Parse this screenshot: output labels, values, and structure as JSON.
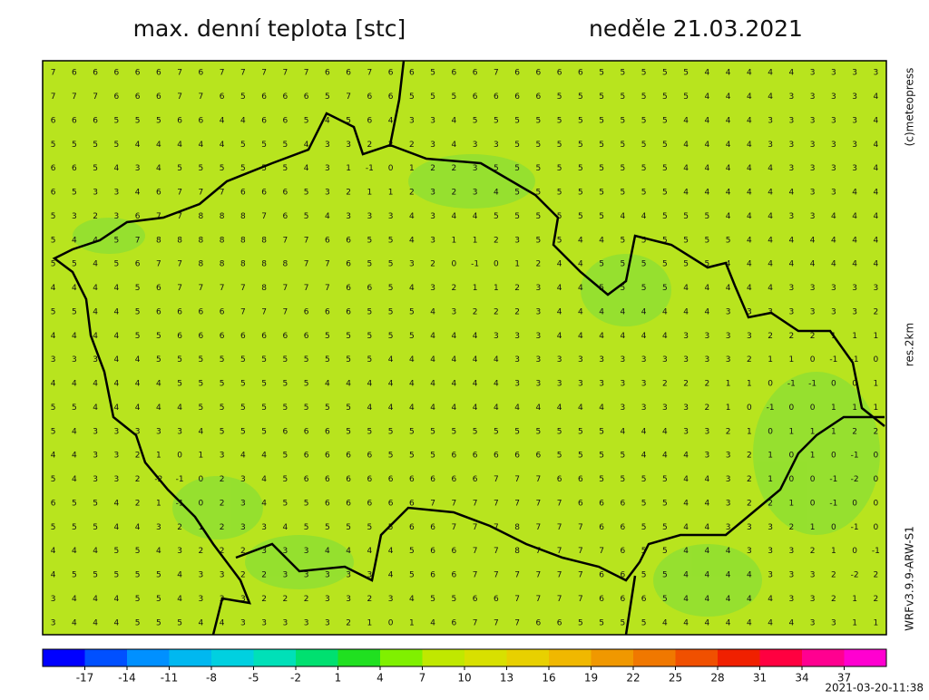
{
  "header": {
    "title": "max. denní teplota [stc]",
    "date": "neděle 21.03.2021"
  },
  "side_labels": {
    "copyright": "(c)meteopress",
    "resolution": "res.2km",
    "model": "WRFv3.9.9-ARW-S1"
  },
  "timestamp": "2021-03-20-11:38",
  "colorbar": {
    "range": [
      -20,
      40
    ],
    "ticks": [
      -17,
      -14,
      -11,
      -8,
      -5,
      -2,
      1,
      4,
      7,
      10,
      13,
      16,
      19,
      22,
      25,
      28,
      31,
      34,
      37
    ],
    "colors": [
      "#0000ff",
      "#0050ff",
      "#0090ff",
      "#00b8f0",
      "#00d0e0",
      "#00e0b8",
      "#00e070",
      "#20e020",
      "#80f000",
      "#c0e800",
      "#d8e000",
      "#e8d000",
      "#f0b800",
      "#f09800",
      "#f07800",
      "#f05000",
      "#f02000",
      "#ff0040",
      "#ff0090",
      "#ff00d0"
    ]
  },
  "grid": [
    [
      7,
      6,
      6,
      6,
      6,
      6,
      7,
      6,
      7,
      7,
      7,
      7,
      7,
      6,
      6,
      7,
      6,
      6,
      5,
      6,
      6,
      7,
      6,
      6,
      6,
      6,
      5,
      5,
      5,
      5,
      5,
      4,
      4,
      4,
      4,
      4,
      3,
      3,
      3,
      3
    ],
    [
      7,
      7,
      7,
      6,
      6,
      6,
      7,
      7,
      6,
      5,
      6,
      6,
      6,
      5,
      7,
      6,
      6,
      5,
      5,
      5,
      6,
      6,
      6,
      6,
      5,
      5,
      5,
      5,
      5,
      5,
      5,
      4,
      4,
      4,
      4,
      3,
      3,
      3,
      3,
      4
    ],
    [
      6,
      6,
      6,
      5,
      5,
      5,
      6,
      6,
      4,
      4,
      6,
      6,
      5,
      4,
      5,
      6,
      4,
      3,
      3,
      4,
      5,
      5,
      5,
      5,
      5,
      5,
      5,
      5,
      5,
      5,
      4,
      4,
      4,
      4,
      3,
      3,
      3,
      3,
      3,
      4
    ],
    [
      5,
      5,
      5,
      5,
      4,
      4,
      4,
      4,
      4,
      5,
      5,
      5,
      4,
      3,
      3,
      2,
      2,
      2,
      3,
      4,
      3,
      3,
      5,
      5,
      5,
      5,
      5,
      5,
      5,
      5,
      4,
      4,
      4,
      4,
      3,
      3,
      3,
      3,
      3,
      4
    ],
    [
      6,
      6,
      5,
      4,
      3,
      4,
      5,
      5,
      5,
      5,
      5,
      5,
      4,
      3,
      1,
      -1,
      0,
      1,
      2,
      2,
      3,
      5,
      5,
      5,
      5,
      5,
      5,
      5,
      5,
      5,
      4,
      4,
      4,
      4,
      4,
      3,
      3,
      3,
      3,
      4
    ],
    [
      6,
      5,
      3,
      3,
      4,
      6,
      7,
      7,
      7,
      6,
      6,
      6,
      5,
      3,
      2,
      1,
      1,
      2,
      3,
      2,
      3,
      4,
      5,
      5,
      5,
      5,
      5,
      5,
      5,
      5,
      4,
      4,
      4,
      4,
      4,
      4,
      3,
      3,
      4,
      4
    ],
    [
      5,
      3,
      2,
      3,
      6,
      7,
      7,
      8,
      8,
      8,
      7,
      6,
      5,
      4,
      3,
      3,
      3,
      4,
      3,
      4,
      4,
      5,
      5,
      5,
      5,
      5,
      5,
      4,
      4,
      5,
      5,
      5,
      4,
      4,
      4,
      3,
      3,
      4,
      4,
      4
    ],
    [
      5,
      4,
      4,
      5,
      7,
      8,
      8,
      8,
      8,
      8,
      8,
      7,
      7,
      6,
      6,
      5,
      5,
      4,
      3,
      1,
      1,
      2,
      3,
      5,
      5,
      4,
      4,
      5,
      5,
      5,
      5,
      5,
      5,
      4,
      4,
      4,
      4,
      4,
      4,
      4
    ],
    [
      5,
      5,
      4,
      5,
      6,
      7,
      7,
      8,
      8,
      8,
      8,
      8,
      7,
      7,
      6,
      5,
      5,
      3,
      2,
      0,
      -1,
      0,
      1,
      2,
      4,
      4,
      5,
      5,
      5,
      5,
      5,
      5,
      4,
      4,
      4,
      4,
      4,
      4,
      4,
      4
    ],
    [
      4,
      4,
      4,
      4,
      5,
      6,
      7,
      7,
      7,
      7,
      8,
      7,
      7,
      7,
      6,
      6,
      5,
      4,
      3,
      2,
      1,
      1,
      2,
      3,
      4,
      4,
      5,
      5,
      5,
      5,
      4,
      4,
      4,
      4,
      4,
      3,
      3,
      3,
      3,
      3
    ],
    [
      5,
      5,
      4,
      4,
      5,
      6,
      6,
      6,
      6,
      7,
      7,
      7,
      6,
      6,
      6,
      5,
      5,
      5,
      4,
      3,
      2,
      2,
      2,
      3,
      4,
      4,
      4,
      4,
      4,
      4,
      4,
      4,
      3,
      3,
      3,
      3,
      3,
      3,
      3,
      2
    ],
    [
      4,
      4,
      4,
      4,
      5,
      5,
      6,
      6,
      6,
      6,
      6,
      6,
      6,
      5,
      5,
      5,
      5,
      5,
      4,
      4,
      4,
      3,
      3,
      3,
      4,
      4,
      4,
      4,
      4,
      4,
      3,
      3,
      3,
      3,
      2,
      2,
      2,
      1,
      1,
      1
    ],
    [
      3,
      3,
      3,
      4,
      4,
      5,
      5,
      5,
      5,
      5,
      5,
      5,
      5,
      5,
      5,
      5,
      4,
      4,
      4,
      4,
      4,
      4,
      3,
      3,
      3,
      3,
      3,
      3,
      3,
      3,
      3,
      3,
      3,
      2,
      1,
      1,
      0,
      -1,
      -1,
      0
    ],
    [
      4,
      4,
      4,
      4,
      4,
      4,
      5,
      5,
      5,
      5,
      5,
      5,
      5,
      4,
      4,
      4,
      4,
      4,
      4,
      4,
      4,
      4,
      3,
      3,
      3,
      3,
      3,
      3,
      3,
      2,
      2,
      2,
      1,
      1,
      0,
      -1,
      -1,
      0,
      0,
      1
    ],
    [
      5,
      5,
      4,
      4,
      4,
      4,
      4,
      5,
      5,
      5,
      5,
      5,
      5,
      5,
      5,
      4,
      4,
      4,
      4,
      4,
      4,
      4,
      4,
      4,
      4,
      4,
      4,
      3,
      3,
      3,
      3,
      2,
      1,
      0,
      -1,
      0,
      0,
      1,
      1,
      1
    ],
    [
      5,
      4,
      3,
      3,
      3,
      3,
      3,
      4,
      5,
      5,
      5,
      6,
      6,
      6,
      5,
      5,
      5,
      5,
      5,
      5,
      5,
      5,
      5,
      5,
      5,
      5,
      5,
      4,
      4,
      4,
      3,
      3,
      2,
      1,
      0,
      1,
      1,
      1,
      2,
      2
    ],
    [
      4,
      4,
      3,
      3,
      2,
      1,
      0,
      1,
      3,
      4,
      4,
      5,
      6,
      6,
      6,
      6,
      5,
      5,
      5,
      6,
      6,
      6,
      6,
      6,
      5,
      5,
      5,
      5,
      4,
      4,
      4,
      3,
      3,
      2,
      1,
      0,
      1,
      0,
      -1,
      0
    ],
    [
      5,
      4,
      3,
      3,
      2,
      -2,
      -1,
      0,
      2,
      3,
      4,
      5,
      6,
      6,
      6,
      6,
      6,
      6,
      6,
      6,
      6,
      7,
      7,
      7,
      6,
      6,
      5,
      5,
      5,
      5,
      4,
      4,
      3,
      2,
      1,
      0,
      0,
      -1,
      -2,
      0
    ],
    [
      6,
      5,
      5,
      4,
      2,
      1,
      -1,
      0,
      2,
      3,
      4,
      5,
      5,
      6,
      6,
      6,
      6,
      6,
      7,
      7,
      7,
      7,
      7,
      7,
      7,
      6,
      6,
      6,
      5,
      5,
      4,
      4,
      3,
      2,
      2,
      1,
      0,
      -1,
      0,
      0
    ],
    [
      5,
      5,
      5,
      4,
      4,
      3,
      2,
      1,
      2,
      3,
      3,
      4,
      5,
      5,
      5,
      5,
      5,
      6,
      6,
      7,
      7,
      7,
      8,
      7,
      7,
      7,
      6,
      6,
      5,
      5,
      4,
      4,
      3,
      3,
      3,
      2,
      1,
      0,
      -1,
      0
    ],
    [
      4,
      4,
      4,
      5,
      5,
      4,
      3,
      2,
      2,
      2,
      3,
      3,
      3,
      4,
      4,
      4,
      4,
      5,
      6,
      6,
      7,
      7,
      8,
      7,
      7,
      7,
      7,
      6,
      5,
      5,
      4,
      4,
      4,
      3,
      3,
      3,
      2,
      1,
      0,
      -1
    ],
    [
      4,
      5,
      5,
      5,
      5,
      5,
      4,
      3,
      3,
      2,
      2,
      3,
      3,
      3,
      3,
      3,
      4,
      5,
      6,
      6,
      7,
      7,
      7,
      7,
      7,
      7,
      6,
      6,
      5,
      5,
      4,
      4,
      4,
      4,
      3,
      3,
      3,
      2,
      -2,
      2
    ],
    [
      3,
      4,
      4,
      4,
      5,
      5,
      4,
      3,
      3,
      3,
      2,
      2,
      2,
      3,
      3,
      2,
      3,
      4,
      5,
      5,
      6,
      6,
      7,
      7,
      7,
      7,
      6,
      6,
      6,
      5,
      4,
      4,
      4,
      4,
      4,
      3,
      3,
      2,
      1,
      2
    ],
    [
      3,
      4,
      4,
      4,
      5,
      5,
      5,
      4,
      4,
      3,
      3,
      3,
      3,
      3,
      2,
      1,
      0,
      1,
      4,
      6,
      7,
      7,
      7,
      6,
      6,
      5,
      5,
      5,
      5,
      4,
      4,
      4,
      4,
      4,
      4,
      4,
      3,
      3,
      1,
      1
    ]
  ]
}
